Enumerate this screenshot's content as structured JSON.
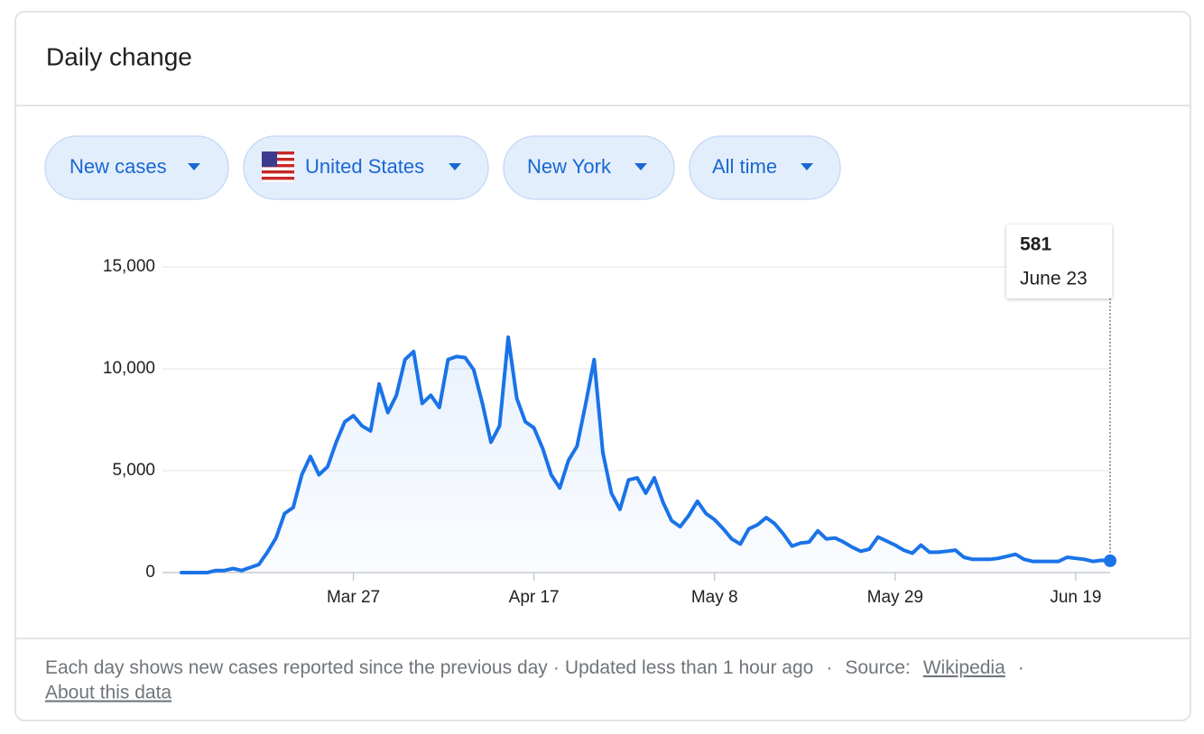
{
  "header": {
    "title": "Daily change"
  },
  "chips": [
    "New cases",
    "United States",
    "New York",
    "All time"
  ],
  "footer": {
    "description": "Each day shows new cases reported since the previous day",
    "separator": "·",
    "updated": "Updated less than 1 hour ago",
    "source_label": "Source:",
    "source_link": "Wikipedia",
    "about": "About this data"
  },
  "tooltip": {
    "date": "June 23"
  },
  "chart_data": {
    "type": "line",
    "color": "#1a73e8",
    "grid": true,
    "x": [
      "Mar 7",
      "Mar 8",
      "Mar 9",
      "Mar 10",
      "Mar 11",
      "Mar 12",
      "Mar 13",
      "Mar 14",
      "Mar 15",
      "Mar 16",
      "Mar 17",
      "Mar 18",
      "Mar 19",
      "Mar 20",
      "Mar 21",
      "Mar 22",
      "Mar 23",
      "Mar 24",
      "Mar 25",
      "Mar 26",
      "Mar 27",
      "Mar 28",
      "Mar 29",
      "Mar 30",
      "Mar 31",
      "Apr 1",
      "Apr 2",
      "Apr 3",
      "Apr 4",
      "Apr 5",
      "Apr 6",
      "Apr 7",
      "Apr 8",
      "Apr 9",
      "Apr 10",
      "Apr 11",
      "Apr 12",
      "Apr 13",
      "Apr 14",
      "Apr 15",
      "Apr 16",
      "Apr 17",
      "Apr 18",
      "Apr 19",
      "Apr 20",
      "Apr 21",
      "Apr 22",
      "Apr 23",
      "Apr 24",
      "Apr 25",
      "Apr 26",
      "Apr 27",
      "Apr 28",
      "Apr 29",
      "Apr 30",
      "May 1",
      "May 2",
      "May 3",
      "May 4",
      "May 5",
      "May 6",
      "May 7",
      "May 8",
      "May 9",
      "May 10",
      "May 11",
      "May 12",
      "May 13",
      "May 14",
      "May 15",
      "May 16",
      "May 17",
      "May 18",
      "May 19",
      "May 20",
      "May 21",
      "May 22",
      "May 23",
      "May 24",
      "May 25",
      "May 26",
      "May 27",
      "May 28",
      "May 29",
      "May 30",
      "May 31",
      "Jun 1",
      "Jun 2",
      "Jun 3",
      "Jun 4",
      "Jun 5",
      "Jun 6",
      "Jun 7",
      "Jun 8",
      "Jun 9",
      "Jun 10",
      "Jun 11",
      "Jun 12",
      "Jun 13",
      "Jun 14",
      "Jun 15",
      "Jun 16",
      "Jun 17",
      "Jun 18",
      "Jun 19",
      "Jun 20",
      "Jun 21",
      "Jun 22",
      "Jun 23"
    ],
    "values": [
      0,
      0,
      0,
      0,
      100,
      100,
      200,
      100,
      250,
      400,
      1000,
      1700,
      2900,
      3200,
      4800,
      5700,
      4800,
      5200,
      6400,
      7400,
      7700,
      7200,
      6950,
      9250,
      7850,
      8700,
      10450,
      10850,
      8300,
      8700,
      8100,
      10450,
      10600,
      10550,
      9950,
      8300,
      6400,
      7200,
      11550,
      8550,
      7400,
      7100,
      6100,
      4800,
      4150,
      5500,
      6200,
      8250,
      10450,
      5900,
      3900,
      3100,
      4550,
      4650,
      3900,
      4650,
      3450,
      2550,
      2250,
      2800,
      3500,
      2900,
      2600,
      2150,
      1650,
      1400,
      2150,
      2350,
      2700,
      2400,
      1900,
      1300,
      1450,
      1500,
      2050,
      1650,
      1700,
      1500,
      1250,
      1050,
      1150,
      1750,
      1550,
      1350,
      1100,
      950,
      1350,
      1000,
      1000,
      1050,
      1100,
      750,
      650,
      650,
      650,
      700,
      800,
      900,
      650,
      550,
      550,
      550,
      550,
      750,
      700,
      650,
      550,
      600,
      581
    ],
    "xticks": [
      "Mar 27",
      "Apr 17",
      "May 8",
      "May 29",
      "Jun 19"
    ],
    "ylim": [
      0,
      15000
    ],
    "yticks": [
      0,
      {
        "value": 5000,
        "label": "5,000"
      },
      {
        "value": 10000,
        "label": "10,000"
      },
      {
        "value": 15000,
        "label": "15,000"
      }
    ]
  }
}
